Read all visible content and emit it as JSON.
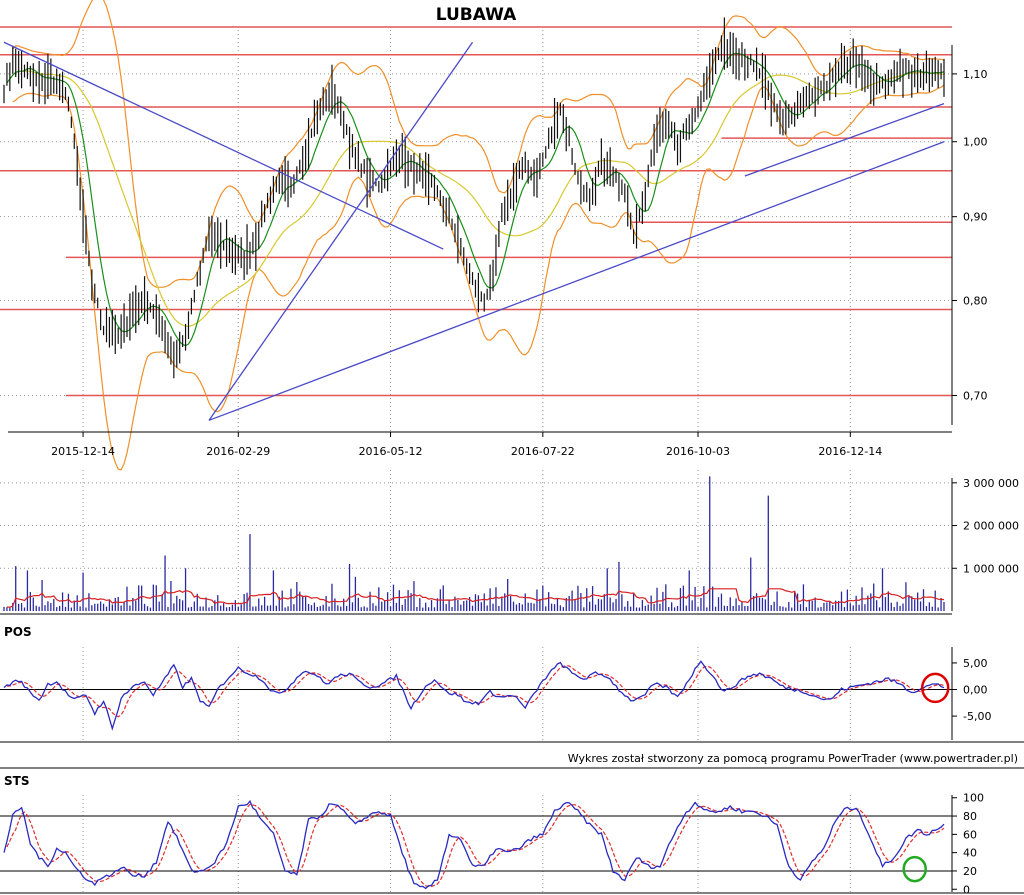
{
  "title": "LUBAWA",
  "footer": "Wykres został stworzony za pomocą programu PowerTrader (www.powertrader.pl)",
  "colors": {
    "candle": "#111111",
    "sma_fast": "#1a8f1a",
    "sma_slow": "#d8c831",
    "bollinger": "#f0902a",
    "support_line": "#e45555",
    "trend_line": "#4a4ac8",
    "volume_bar": "#2a2aa0",
    "volume_avg": "#d82020",
    "osc_main": "#2a2ac0",
    "osc_signal": "#e03030",
    "highlight_pos": "#dd0000",
    "highlight_sts": "#22aa22",
    "grid": "#999999"
  },
  "chart_data": [
    {
      "type": "line",
      "name": "price",
      "title": "LUBAWA",
      "x_ticks": [
        "2015-12-14",
        "2016-02-29",
        "2016-05-12",
        "2016-07-22",
        "2016-10-03",
        "2016-12-14"
      ],
      "x_tick_index": [
        27,
        80,
        132,
        184,
        237,
        289
      ],
      "y_ticks": [
        "0,70",
        "0,80",
        "0,90",
        "1,00",
        "1,10"
      ],
      "y_tick_values": [
        0.7,
        0.8,
        0.9,
        1.0,
        1.1
      ],
      "ylim": [
        0.665,
        1.17
      ],
      "scale": "log",
      "grid": true,
      "close_anchors": [
        [
          0,
          1.08
        ],
        [
          3,
          1.12
        ],
        [
          8,
          1.1
        ],
        [
          12,
          1.085
        ],
        [
          16,
          1.1
        ],
        [
          22,
          1.06
        ],
        [
          26,
          0.93
        ],
        [
          30,
          0.82
        ],
        [
          34,
          0.77
        ],
        [
          40,
          0.76
        ],
        [
          44,
          0.79
        ],
        [
          48,
          0.8
        ],
        [
          51,
          0.79
        ],
        [
          54,
          0.77
        ],
        [
          58,
          0.74
        ],
        [
          62,
          0.76
        ],
        [
          66,
          0.82
        ],
        [
          70,
          0.88
        ],
        [
          74,
          0.87
        ],
        [
          78,
          0.86
        ],
        [
          82,
          0.85
        ],
        [
          86,
          0.87
        ],
        [
          90,
          0.92
        ],
        [
          94,
          0.95
        ],
        [
          98,
          0.93
        ],
        [
          102,
          0.98
        ],
        [
          106,
          1.03
        ],
        [
          110,
          1.06
        ],
        [
          113,
          1.07
        ],
        [
          116,
          1.03
        ],
        [
          120,
          0.98
        ],
        [
          124,
          0.95
        ],
        [
          128,
          0.94
        ],
        [
          132,
          0.97
        ],
        [
          136,
          0.98
        ],
        [
          140,
          0.96
        ],
        [
          144,
          0.95
        ],
        [
          148,
          0.93
        ],
        [
          152,
          0.9
        ],
        [
          156,
          0.86
        ],
        [
          160,
          0.82
        ],
        [
          164,
          0.8
        ],
        [
          167,
          0.83
        ],
        [
          170,
          0.9
        ],
        [
          174,
          0.94
        ],
        [
          178,
          0.97
        ],
        [
          182,
          0.95
        ],
        [
          186,
          1.0
        ],
        [
          190,
          1.05
        ],
        [
          193,
          1.0
        ],
        [
          196,
          0.95
        ],
        [
          200,
          0.92
        ],
        [
          204,
          0.97
        ],
        [
          208,
          0.95
        ],
        [
          212,
          0.94
        ],
        [
          215,
          0.88
        ],
        [
          218,
          0.91
        ],
        [
          222,
          1.0
        ],
        [
          226,
          1.03
        ],
        [
          230,
          1.0
        ],
        [
          234,
          1.02
        ],
        [
          238,
          1.06
        ],
        [
          242,
          1.12
        ],
        [
          246,
          1.14
        ],
        [
          250,
          1.13
        ],
        [
          254,
          1.12
        ],
        [
          258,
          1.1
        ],
        [
          262,
          1.06
        ],
        [
          266,
          1.03
        ],
        [
          270,
          1.04
        ],
        [
          274,
          1.06
        ],
        [
          278,
          1.07
        ],
        [
          282,
          1.09
        ],
        [
          286,
          1.11
        ],
        [
          290,
          1.12
        ],
        [
          294,
          1.1
        ],
        [
          298,
          1.08
        ],
        [
          302,
          1.09
        ],
        [
          306,
          1.11
        ],
        [
          310,
          1.1
        ],
        [
          314,
          1.1
        ],
        [
          318,
          1.11
        ],
        [
          321,
          1.1
        ]
      ],
      "support_levels": [
        1.175,
        1.13,
        1.05,
        0.96,
        0.85,
        0.79,
        0.7
      ],
      "support_short_levels": [
        [
          245,
          1.005
        ],
        [
          214,
          0.893
        ]
      ],
      "trendlines": [
        [
          [
            0,
            1.15
          ],
          [
            150,
            0.86
          ]
        ],
        [
          [
            70,
            0.676
          ],
          [
            160,
            1.15
          ]
        ],
        [
          [
            70,
            0.676
          ],
          [
            321,
            1.0
          ]
        ],
        [
          [
            253,
            0.953
          ],
          [
            321,
            1.055
          ]
        ]
      ]
    },
    {
      "type": "bar",
      "name": "volume",
      "y_ticks": [
        "1 000 000",
        "2 000 000",
        "3 000 000"
      ],
      "y_tick_values": [
        1000000,
        2000000,
        3000000
      ],
      "ylim": [
        0,
        3300000
      ],
      "spikes": [
        [
          4,
          1050000
        ],
        [
          8,
          950000
        ],
        [
          27,
          900000
        ],
        [
          55,
          1300000
        ],
        [
          62,
          1000000
        ],
        [
          84,
          1800000
        ],
        [
          92,
          950000
        ],
        [
          118,
          1100000
        ],
        [
          120,
          800000
        ],
        [
          140,
          700000
        ],
        [
          150,
          600000
        ],
        [
          172,
          750000
        ],
        [
          206,
          1000000
        ],
        [
          210,
          1150000
        ],
        [
          234,
          950000
        ],
        [
          241,
          3150000
        ],
        [
          255,
          1250000
        ],
        [
          261,
          2700000
        ],
        [
          300,
          1000000
        ]
      ],
      "avg_level": 280000
    },
    {
      "type": "line",
      "name": "POS",
      "title": "POS",
      "y_ticks": [
        "5,00",
        "0,00",
        "-5,00"
      ],
      "y_tick_values": [
        5,
        0,
        -5
      ],
      "ylim": [
        -9.5,
        8
      ],
      "series_anchors": [
        [
          0,
          0.5
        ],
        [
          5,
          1.8
        ],
        [
          9,
          -0.5
        ],
        [
          12,
          -2
        ],
        [
          15,
          1
        ],
        [
          18,
          1.5
        ],
        [
          21,
          -0.5
        ],
        [
          24,
          -2
        ],
        [
          28,
          -1
        ],
        [
          31,
          -4.5
        ],
        [
          34,
          -2
        ],
        [
          37,
          -7.5
        ],
        [
          40,
          -1.5
        ],
        [
          44,
          0.5
        ],
        [
          48,
          1.5
        ],
        [
          51,
          -1
        ],
        [
          55,
          2
        ],
        [
          58,
          4.5
        ],
        [
          61,
          0.5
        ],
        [
          64,
          2
        ],
        [
          67,
          -2
        ],
        [
          70,
          -3.5
        ],
        [
          73,
          0
        ],
        [
          77,
          2.5
        ],
        [
          80,
          4
        ],
        [
          84,
          3
        ],
        [
          88,
          2
        ],
        [
          91,
          0
        ],
        [
          94,
          -1
        ],
        [
          98,
          1
        ],
        [
          102,
          3.5
        ],
        [
          106,
          3
        ],
        [
          110,
          1
        ],
        [
          114,
          2.5
        ],
        [
          118,
          3
        ],
        [
          121,
          1.5
        ],
        [
          125,
          0.5
        ],
        [
          129,
          1
        ],
        [
          134,
          2.5
        ],
        [
          139,
          -3.5
        ],
        [
          143,
          0
        ],
        [
          147,
          2
        ],
        [
          151,
          -0.5
        ],
        [
          155,
          -1
        ],
        [
          158,
          -2.5
        ],
        [
          162,
          -2.5
        ],
        [
          166,
          -0.5
        ],
        [
          170,
          -1.5
        ],
        [
          174,
          -1
        ],
        [
          178,
          -3.5
        ],
        [
          182,
          0
        ],
        [
          186,
          3
        ],
        [
          190,
          5
        ],
        [
          194,
          3
        ],
        [
          198,
          2
        ],
        [
          202,
          3
        ],
        [
          206,
          2.5
        ],
        [
          210,
          0
        ],
        [
          214,
          -2
        ],
        [
          218,
          -1.5
        ],
        [
          222,
          1
        ],
        [
          226,
          0.5
        ],
        [
          230,
          -1.5
        ],
        [
          234,
          2
        ],
        [
          238,
          5.5
        ],
        [
          242,
          2.5
        ],
        [
          246,
          -0.5
        ],
        [
          250,
          1
        ],
        [
          254,
          2.5
        ],
        [
          258,
          3
        ],
        [
          262,
          2
        ],
        [
          266,
          0.5
        ],
        [
          270,
          0
        ],
        [
          274,
          -0.5
        ],
        [
          278,
          -1.5
        ],
        [
          282,
          -2
        ],
        [
          286,
          0
        ],
        [
          290,
          0.5
        ],
        [
          294,
          1
        ],
        [
          298,
          1.5
        ],
        [
          302,
          2
        ],
        [
          306,
          1
        ],
        [
          310,
          -0.5
        ],
        [
          314,
          0.5
        ],
        [
          318,
          1
        ],
        [
          321,
          0.5
        ]
      ],
      "highlight_index": 318
    },
    {
      "type": "line",
      "name": "STS",
      "title": "STS",
      "y_ticks": [
        "100",
        "80",
        "60",
        "40",
        "20",
        "0"
      ],
      "y_tick_values": [
        100,
        80,
        60,
        40,
        20,
        0
      ],
      "ylim": [
        -3,
        103
      ],
      "series_anchors": [
        [
          0,
          40
        ],
        [
          3,
          80
        ],
        [
          6,
          90
        ],
        [
          9,
          50
        ],
        [
          12,
          35
        ],
        [
          15,
          25
        ],
        [
          18,
          45
        ],
        [
          21,
          40
        ],
        [
          24,
          25
        ],
        [
          27,
          15
        ],
        [
          31,
          5
        ],
        [
          34,
          15
        ],
        [
          37,
          15
        ],
        [
          40,
          25
        ],
        [
          44,
          15
        ],
        [
          48,
          15
        ],
        [
          52,
          30
        ],
        [
          56,
          75
        ],
        [
          60,
          50
        ],
        [
          64,
          20
        ],
        [
          68,
          20
        ],
        [
          72,
          30
        ],
        [
          76,
          50
        ],
        [
          80,
          90
        ],
        [
          84,
          95
        ],
        [
          88,
          75
        ],
        [
          92,
          60
        ],
        [
          96,
          20
        ],
        [
          100,
          15
        ],
        [
          104,
          75
        ],
        [
          108,
          80
        ],
        [
          112,
          95
        ],
        [
          116,
          85
        ],
        [
          120,
          70
        ],
        [
          124,
          80
        ],
        [
          128,
          85
        ],
        [
          132,
          80
        ],
        [
          136,
          40
        ],
        [
          140,
          5
        ],
        [
          144,
          0
        ],
        [
          148,
          10
        ],
        [
          152,
          60
        ],
        [
          156,
          55
        ],
        [
          160,
          25
        ],
        [
          164,
          25
        ],
        [
          168,
          45
        ],
        [
          172,
          40
        ],
        [
          176,
          45
        ],
        [
          180,
          55
        ],
        [
          184,
          60
        ],
        [
          188,
          85
        ],
        [
          192,
          95
        ],
        [
          196,
          85
        ],
        [
          200,
          70
        ],
        [
          204,
          60
        ],
        [
          208,
          20
        ],
        [
          212,
          10
        ],
        [
          216,
          35
        ],
        [
          220,
          25
        ],
        [
          224,
          25
        ],
        [
          228,
          55
        ],
        [
          232,
          80
        ],
        [
          236,
          95
        ],
        [
          240,
          85
        ],
        [
          244,
          85
        ],
        [
          248,
          90
        ],
        [
          252,
          85
        ],
        [
          256,
          85
        ],
        [
          260,
          80
        ],
        [
          264,
          70
        ],
        [
          268,
          25
        ],
        [
          272,
          10
        ],
        [
          276,
          30
        ],
        [
          280,
          45
        ],
        [
          284,
          75
        ],
        [
          288,
          90
        ],
        [
          292,
          85
        ],
        [
          296,
          55
        ],
        [
          300,
          25
        ],
        [
          304,
          35
        ],
        [
          308,
          55
        ],
        [
          312,
          65
        ],
        [
          315,
          60
        ],
        [
          318,
          65
        ],
        [
          321,
          70
        ]
      ],
      "lines": [
        80,
        20
      ],
      "highlight_index": 311
    }
  ]
}
